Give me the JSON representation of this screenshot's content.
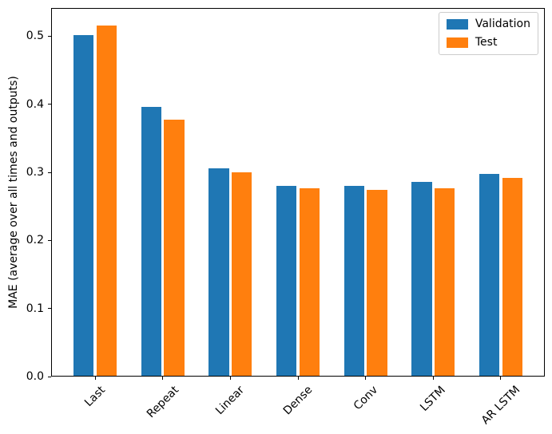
{
  "figure": {
    "background": "#ffffff"
  },
  "chart_data": {
    "type": "bar",
    "title": "",
    "xlabel": "",
    "ylabel": "MAE (average over all times and outputs)",
    "categories": [
      "Last",
      "Repeat",
      "Linear",
      "Dense",
      "Conv",
      "LSTM",
      "AR LSTM"
    ],
    "series": [
      {
        "name": "Validation",
        "color": "#1f77b4",
        "values": [
          0.502,
          0.396,
          0.306,
          0.28,
          0.28,
          0.286,
          0.298
        ]
      },
      {
        "name": "Test",
        "color": "#ff7f0e",
        "values": [
          0.516,
          0.377,
          0.3,
          0.277,
          0.274,
          0.277,
          0.292
        ]
      }
    ],
    "ylim": [
      0,
      0.5415
    ],
    "yticks": [
      0.0,
      0.1,
      0.2,
      0.3,
      0.4,
      0.5
    ],
    "ytick_labels": [
      "0.0",
      "0.1",
      "0.2",
      "0.3",
      "0.4",
      "0.5"
    ],
    "xtick_rotation": 45,
    "grid": false,
    "legend_position": "upper right",
    "bar_width_units": 0.3,
    "bar_offset_units": 0.17,
    "axis_color": "#000000",
    "text_color": "#000000"
  }
}
